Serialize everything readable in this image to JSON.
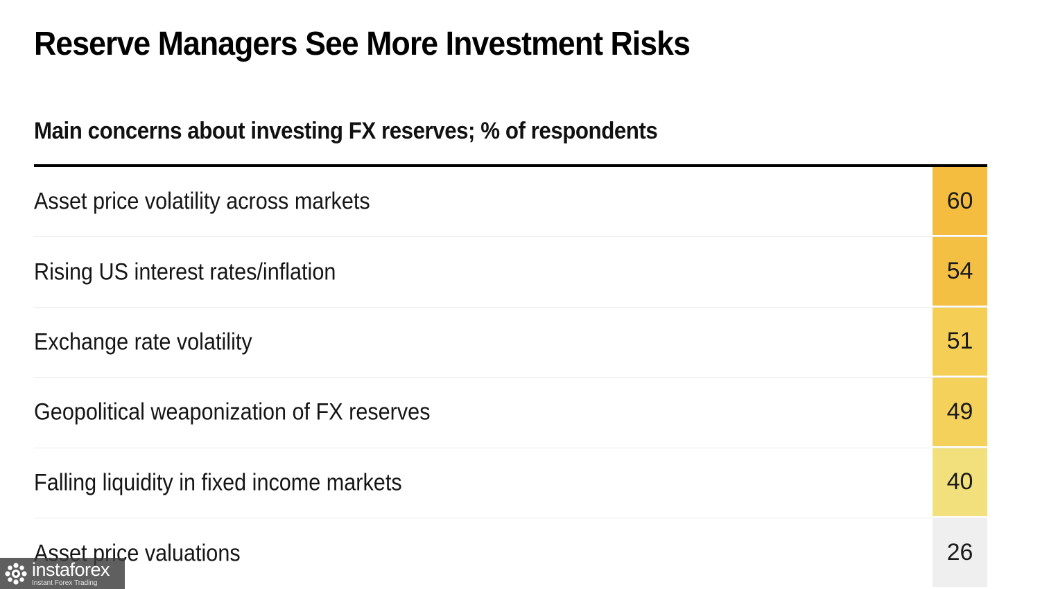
{
  "chart_data": {
    "type": "table",
    "title": "Reserve Managers See More Investment Risks",
    "subtitle": "Main concerns about investing FX reserves; % of respondents",
    "categories": [
      "Asset price volatility across markets",
      "Rising US interest rates/inflation",
      "Exchange rate volatility",
      "Geopolitical weaponization of FX reserves",
      "Falling liquidity in fixed income markets",
      "Asset price valuations"
    ],
    "values": [
      60,
      54,
      51,
      49,
      40,
      26
    ],
    "cell_colors": [
      "#f4bd3f",
      "#f4c044",
      "#f5cf55",
      "#f3d15b",
      "#f1e07c",
      "#efefef"
    ]
  },
  "watermark": {
    "brand": "instaforex",
    "tagline": "Instant Forex Trading"
  }
}
